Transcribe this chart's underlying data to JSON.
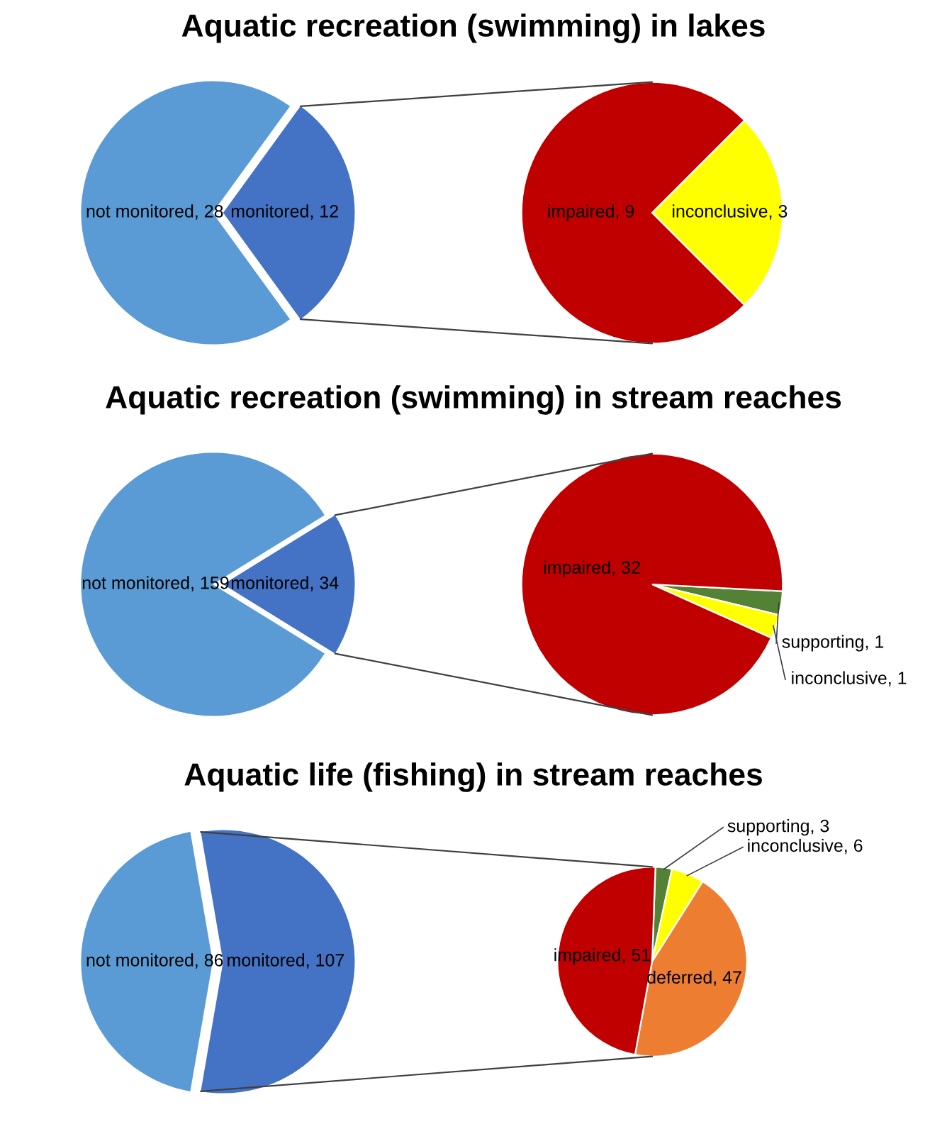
{
  "chart_data": [
    {
      "type": "pie",
      "title": "Aquatic recreation (swimming) in lakes",
      "categories": [
        "not monitored",
        "monitored"
      ],
      "values": [
        28,
        12
      ],
      "colors": [
        "#5b9bd5",
        "#4472c4"
      ],
      "value_labels": [
        ", 28",
        ", 12"
      ]
    },
    {
      "type": "pie",
      "categories": [
        "inconclusive",
        "impaired"
      ],
      "values": [
        3,
        9
      ],
      "colors": [
        "#ffff00",
        "#c00000"
      ],
      "value_labels": [
        ", 3",
        ", 9"
      ]
    },
    {
      "type": "pie",
      "title": "Aquatic recreation (swimming) in stream reaches",
      "categories": [
        "not monitored",
        "monitored"
      ],
      "values": [
        159,
        34
      ],
      "colors": [
        "#5b9bd5",
        "#4472c4"
      ],
      "value_labels": [
        ", 159",
        ", 34"
      ]
    },
    {
      "type": "pie",
      "categories": [
        "supporting",
        "inconclusive",
        "impaired"
      ],
      "values": [
        1,
        1,
        32
      ],
      "colors": [
        "#548235",
        "#ffff00",
        "#c00000"
      ],
      "value_labels": [
        ", 1",
        ", 1",
        ", 32"
      ]
    },
    {
      "type": "pie",
      "title": "Aquatic life (fishing) in stream reaches",
      "categories": [
        "not monitored",
        "monitored"
      ],
      "values": [
        86,
        107
      ],
      "colors": [
        "#5b9bd5",
        "#4472c4"
      ],
      "value_labels": [
        ", 86",
        ", 107"
      ]
    },
    {
      "type": "pie",
      "categories": [
        "supporting",
        "inconclusive",
        "deferred",
        "impaired"
      ],
      "values": [
        3,
        6,
        47,
        51
      ],
      "colors": [
        "#548235",
        "#ffff00",
        "#ed7d31",
        "#c00000"
      ],
      "value_labels": [
        ", 3",
        ", 6",
        ", 47",
        ", 51"
      ]
    }
  ]
}
